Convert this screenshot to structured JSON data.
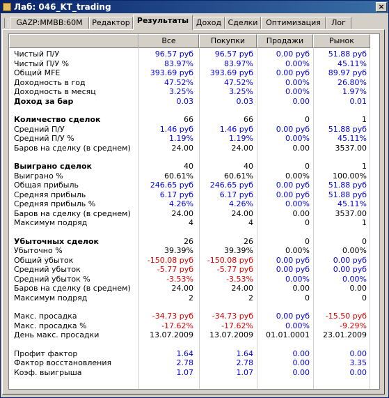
{
  "window": {
    "title": "Лаб: 046_KT_trading"
  },
  "tabs": [
    {
      "label": "GAZP:MMBB:60M",
      "active": false
    },
    {
      "label": "Редактор",
      "active": false
    },
    {
      "label": "Результаты",
      "active": true
    },
    {
      "label": "Доход",
      "active": false
    },
    {
      "label": "Сделки",
      "active": false
    },
    {
      "label": "Оптимизация",
      "active": false
    },
    {
      "label": "Лог",
      "active": false
    }
  ],
  "columns": [
    "Все",
    "Покупки",
    "Продажи",
    "Рынок"
  ],
  "colors": {
    "blue": "#0000e0",
    "red": "#e00000",
    "black": "#000000"
  },
  "rows": [
    {
      "label": "Чистый П/У",
      "values": [
        "96.57 руб",
        "96.57 руб",
        "0.00 руб",
        "51.88 руб"
      ],
      "colors": [
        "blue",
        "blue",
        "blue",
        "blue"
      ]
    },
    {
      "label": "Чистый П/У %",
      "values": [
        "83.97%",
        "83.97%",
        "0.00%",
        "45.11%"
      ],
      "colors": [
        "blue",
        "blue",
        "blue",
        "blue"
      ]
    },
    {
      "label": "Общий MFE",
      "values": [
        "393.69 руб",
        "393.69 руб",
        "0.00 руб",
        "89.97 руб"
      ],
      "colors": [
        "blue",
        "blue",
        "blue",
        "blue"
      ]
    },
    {
      "label": "Доходность в год",
      "values": [
        "47.52%",
        "47.52%",
        "0.00%",
        "26.80%"
      ],
      "colors": [
        "blue",
        "blue",
        "blue",
        "blue"
      ]
    },
    {
      "label": "Доходность в месяц",
      "values": [
        "3.25%",
        "3.25%",
        "0.00%",
        "1.97%"
      ],
      "colors": [
        "blue",
        "blue",
        "blue",
        "blue"
      ]
    },
    {
      "label": "Доход за бар",
      "bold": true,
      "values": [
        "0.03",
        "0.03",
        "0.00",
        "0.01"
      ],
      "colors": [
        "blue",
        "blue",
        "blue",
        "blue"
      ]
    },
    {
      "spacer": true
    },
    {
      "label": "Количество сделок",
      "bold": true,
      "values": [
        "66",
        "66",
        "0",
        "1"
      ],
      "colors": [
        "black",
        "black",
        "black",
        "black"
      ]
    },
    {
      "label": "Средний П/У",
      "values": [
        "1.46 руб",
        "1.46 руб",
        "0.00 руб",
        "51.88 руб"
      ],
      "colors": [
        "blue",
        "blue",
        "blue",
        "blue"
      ]
    },
    {
      "label": "Средний П/У %",
      "values": [
        "1.19%",
        "1.19%",
        "0.00%",
        "45.11%"
      ],
      "colors": [
        "blue",
        "blue",
        "blue",
        "blue"
      ]
    },
    {
      "label": "Баров на сделку (в среднем)",
      "values": [
        "24.00",
        "24.00",
        "0.00",
        "3537.00"
      ],
      "colors": [
        "black",
        "black",
        "black",
        "black"
      ]
    },
    {
      "spacer": true
    },
    {
      "label": "Выиграно сделок",
      "bold": true,
      "values": [
        "40",
        "40",
        "0",
        "1"
      ],
      "colors": [
        "black",
        "black",
        "black",
        "black"
      ]
    },
    {
      "label": "Выиграно %",
      "values": [
        "60.61%",
        "60.61%",
        "0.00%",
        "100.00%"
      ],
      "colors": [
        "black",
        "black",
        "black",
        "black"
      ]
    },
    {
      "label": "Общая прибыль",
      "values": [
        "246.65 руб",
        "246.65 руб",
        "0.00 руб",
        "51.88 руб"
      ],
      "colors": [
        "blue",
        "blue",
        "blue",
        "blue"
      ]
    },
    {
      "label": "Средняя прибыль",
      "values": [
        "6.17 руб",
        "6.17 руб",
        "0.00 руб",
        "51.88 руб"
      ],
      "colors": [
        "blue",
        "blue",
        "blue",
        "blue"
      ]
    },
    {
      "label": "Средняя прибыль %",
      "values": [
        "4.26%",
        "4.26%",
        "0.00%",
        "45.11%"
      ],
      "colors": [
        "blue",
        "blue",
        "blue",
        "blue"
      ]
    },
    {
      "label": "Баров на сделку (в среднем)",
      "values": [
        "24.00",
        "24.00",
        "0.00",
        "3537.00"
      ],
      "colors": [
        "black",
        "black",
        "black",
        "black"
      ]
    },
    {
      "label": "Максимум подряд",
      "values": [
        "4",
        "4",
        "0",
        "1"
      ],
      "colors": [
        "black",
        "black",
        "black",
        "black"
      ]
    },
    {
      "spacer": true
    },
    {
      "label": "Убыточных сделок",
      "bold": true,
      "values": [
        "26",
        "26",
        "0",
        "0"
      ],
      "colors": [
        "black",
        "black",
        "black",
        "black"
      ]
    },
    {
      "label": "Убыточно %",
      "values": [
        "39.39%",
        "39.39%",
        "0.00%",
        "0.00%"
      ],
      "colors": [
        "black",
        "black",
        "black",
        "black"
      ]
    },
    {
      "label": "Общий убыток",
      "values": [
        "-150.08 руб",
        "-150.08 руб",
        "0.00 руб",
        "0.00 руб"
      ],
      "colors": [
        "red",
        "red",
        "blue",
        "blue"
      ]
    },
    {
      "label": "Средний убыток",
      "values": [
        "-5.77 руб",
        "-5.77 руб",
        "0.00 руб",
        "0.00 руб"
      ],
      "colors": [
        "red",
        "red",
        "blue",
        "blue"
      ]
    },
    {
      "label": "Средний убыток %",
      "values": [
        "-3.53%",
        "-3.53%",
        "0.00%",
        "0.00%"
      ],
      "colors": [
        "red",
        "red",
        "blue",
        "blue"
      ]
    },
    {
      "label": "Баров на сделку (в среднем)",
      "values": [
        "24.00",
        "24.00",
        "0.00",
        "0.00"
      ],
      "colors": [
        "black",
        "black",
        "black",
        "black"
      ]
    },
    {
      "label": "Максимум подряд",
      "values": [
        "2",
        "2",
        "0",
        "0"
      ],
      "colors": [
        "black",
        "black",
        "black",
        "black"
      ]
    },
    {
      "spacer": true
    },
    {
      "label": "Макс. просадка",
      "values": [
        "-34.73 руб",
        "-34.73 руб",
        "0.00 руб",
        "-15.50 руб"
      ],
      "colors": [
        "red",
        "red",
        "blue",
        "red"
      ]
    },
    {
      "label": "Макс. просадка %",
      "values": [
        "-17.62%",
        "-17.62%",
        "0.00%",
        "-9.29%"
      ],
      "colors": [
        "red",
        "red",
        "blue",
        "red"
      ]
    },
    {
      "label": "День макс. просадки",
      "values": [
        "13.07.2009",
        "13.07.2009",
        "01.01.0001",
        "23.01.2009"
      ],
      "colors": [
        "black",
        "black",
        "black",
        "black"
      ]
    },
    {
      "spacer": true
    },
    {
      "label": "Профит фактор",
      "values": [
        "1.64",
        "1.64",
        "0.00",
        "0.00"
      ],
      "colors": [
        "blue",
        "blue",
        "blue",
        "blue"
      ]
    },
    {
      "label": "Фактор восстановления",
      "values": [
        "2.78",
        "2.78",
        "0.00",
        "3.35"
      ],
      "colors": [
        "blue",
        "blue",
        "blue",
        "blue"
      ]
    },
    {
      "label": "Коэф. выигрыша",
      "values": [
        "1.07",
        "1.07",
        "0.00",
        "0.00"
      ],
      "colors": [
        "blue",
        "blue",
        "blue",
        "blue"
      ]
    }
  ]
}
